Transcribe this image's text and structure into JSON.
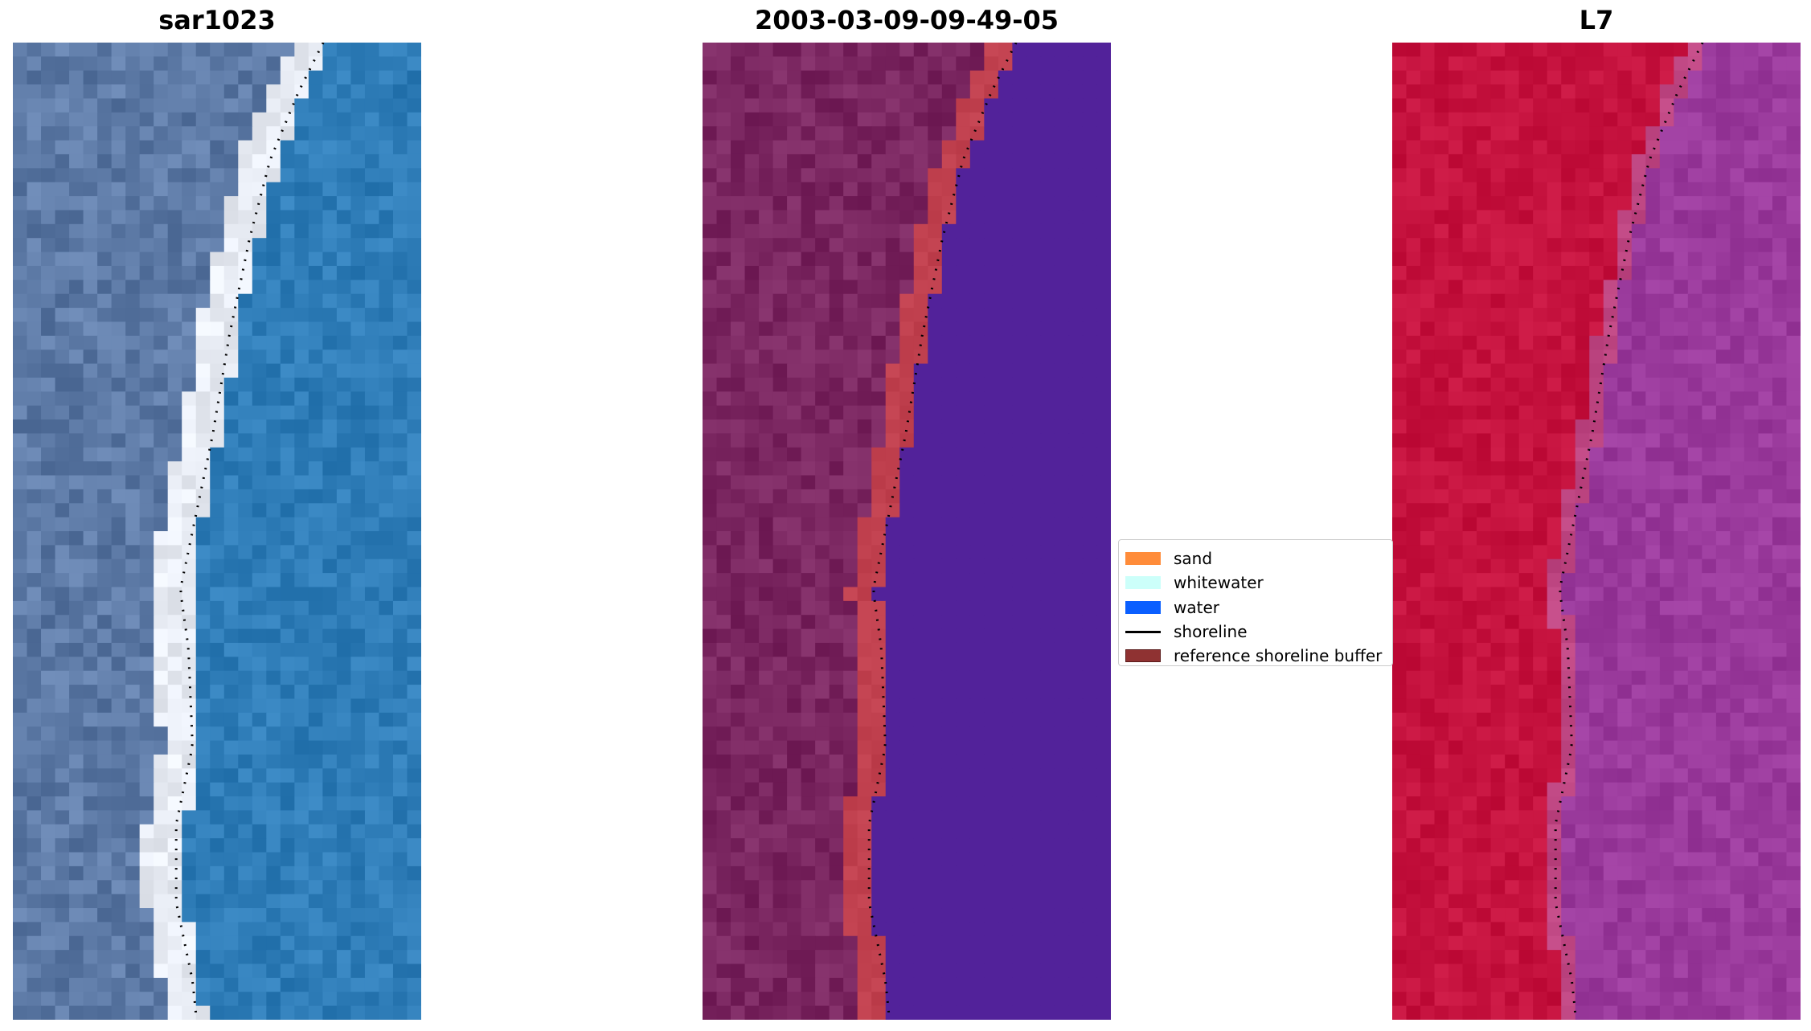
{
  "panels": [
    {
      "title": "sar1023",
      "kind": "rgb"
    },
    {
      "title": "2003-03-09-09-49-05",
      "kind": "classified"
    },
    {
      "title": "L7",
      "kind": "index"
    }
  ],
  "legend": {
    "items": [
      {
        "label": "sand",
        "color": "#ff8c3a",
        "type": "patch"
      },
      {
        "label": "whitewater",
        "color": "#ccfffa",
        "type": "patch"
      },
      {
        "label": "water",
        "color": "#0a5fff",
        "type": "patch"
      },
      {
        "label": "shoreline",
        "color": "#000000",
        "type": "line"
      },
      {
        "label": "reference shoreline buffer",
        "color": "#8f3232",
        "type": "patch"
      }
    ]
  },
  "colors": {
    "rgb_land": "#5d7aa6",
    "rgb_sand": "#e8ecf4",
    "rgb_water": "#2f7db8",
    "classified_land": "#7a2660",
    "classified_buffer": "#c0404e",
    "classified_water": "#52229a",
    "index_land": "#c5123e",
    "index_water": "#9a3a9c"
  }
}
